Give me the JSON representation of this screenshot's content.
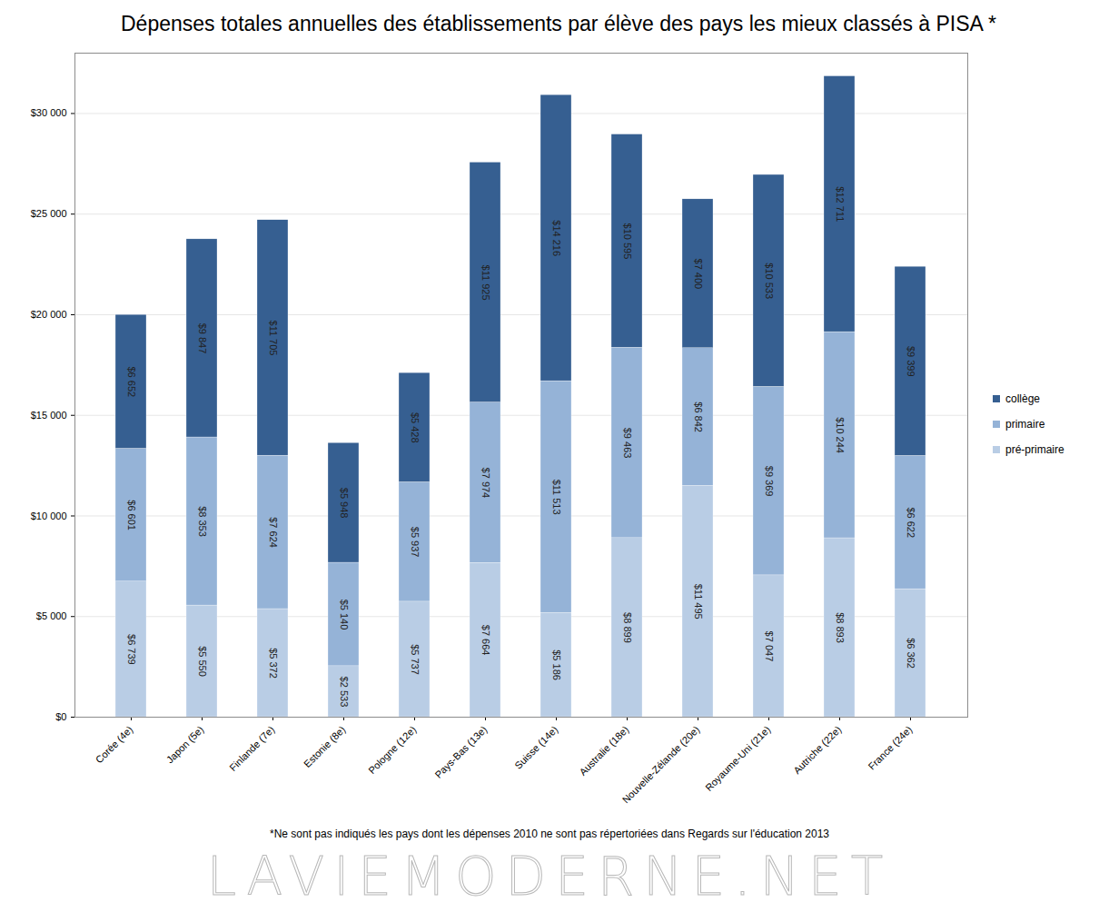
{
  "chart_data": {
    "type": "bar",
    "title": "Dépenses totales annuelles des établissements par élève des pays les mieux classés à PISA *",
    "categories": [
      "Corée (4e)",
      "Japon (5e)",
      "Finlande (7e)",
      "Estonie (8e)",
      "Pologne (12e)",
      "Pays-Bas (13e)",
      "Suisse (14e)",
      "Australie (18e)",
      "Nouvelle-Zélande (20e)",
      "Royaume-Uni (21e)",
      "Autriche (22e)",
      "France (24e)"
    ],
    "series": [
      {
        "name": "pré-primaire",
        "color": "#b9cde5",
        "values": [
          6739,
          5550,
          5372,
          2533,
          5737,
          7664,
          5186,
          8899,
          11495,
          7047,
          8893,
          6362
        ],
        "value_labels": [
          "$6 739",
          "$5 550",
          "$5 372",
          "$2 533",
          "$5 737",
          "$7 664",
          "$5 186",
          "$8 899",
          "$11 495",
          "$7 047",
          "$8 893",
          "$6 362"
        ]
      },
      {
        "name": "primaire",
        "color": "#95b3d7",
        "values": [
          6601,
          8353,
          7624,
          5140,
          5937,
          7974,
          11513,
          9463,
          6842,
          9369,
          10244,
          6622
        ],
        "value_labels": [
          "$6 601",
          "$8 353",
          "$7 624",
          "$5 140",
          "$5 937",
          "$7 974",
          "$11 513",
          "$9 463",
          "$6 842",
          "$9 369",
          "$10 244",
          "$6 622"
        ]
      },
      {
        "name": "collège",
        "color": "#365f91",
        "values": [
          6652,
          9847,
          11705,
          5948,
          5428,
          11925,
          14216,
          10595,
          7400,
          10533,
          12711,
          9399
        ],
        "value_labels": [
          "$6 652",
          "$9 847",
          "$11 705",
          "$5 948",
          "$5 428",
          "$11 925",
          "$14 216",
          "$10 595",
          "$7 400",
          "$10 533",
          "$12 711",
          "$9 399"
        ]
      }
    ],
    "ylim": [
      0,
      33000
    ],
    "yticks": [
      {
        "value": 0,
        "label": "$0"
      },
      {
        "value": 5000,
        "label": "$5 000"
      },
      {
        "value": 10000,
        "label": "$10 000"
      },
      {
        "value": 15000,
        "label": "$15 000"
      },
      {
        "value": 20000,
        "label": "$20 000"
      },
      {
        "value": 25000,
        "label": "$25 000"
      },
      {
        "value": 30000,
        "label": "$30 000"
      }
    ],
    "grid": true,
    "stacked": true,
    "data_labels": true,
    "legend": "right",
    "annotations": [
      "*Ne sont pas indiqués les pays dont les dépenses 2010 ne sont pas répertoriées dans Regards sur l'éducation 2013",
      "LAVIEMODERNE.NET"
    ]
  }
}
